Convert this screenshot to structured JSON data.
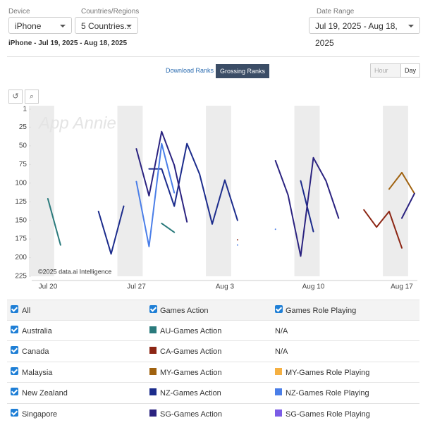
{
  "filters": {
    "device_label": "Device",
    "device": "iPhone",
    "countries_label": "Countries/Regions",
    "countries": "5 Countries...",
    "date_range_label": "Date Range",
    "date_range": "Jul 19, 2025 - Aug 18, 2025"
  },
  "subtitle": "iPhone - Jul 19, 2025 - Aug 18, 2025",
  "tabs": [
    "Download Ranks",
    "Grossing Ranks"
  ],
  "granularity": [
    "Hour",
    "Day"
  ],
  "chart_data": {
    "type": "line",
    "watermark": "App Annie",
    "credit": "©2025 data.ai Intelligence",
    "categories": [
      null,
      "Jul 20",
      null,
      null,
      null,
      null,
      null,
      null,
      "Jul 27",
      null,
      null,
      null,
      null,
      null,
      null,
      "Aug 3",
      null,
      null,
      null,
      null,
      null,
      null,
      "Aug 10",
      null,
      null,
      null,
      null,
      null,
      null,
      "Aug 17",
      null
    ],
    "ylim": [
      1,
      225
    ],
    "y_inverted": true,
    "yticks": [
      1,
      25,
      50,
      75,
      100,
      125,
      150,
      175,
      200,
      225
    ],
    "series": [
      {
        "name": "AU-Games Action",
        "color": "#2a7a7c",
        "values": [
          null,
          121,
          183,
          null,
          null,
          null,
          null,
          null,
          null,
          null,
          154,
          166,
          null,
          null,
          null,
          null,
          null,
          null,
          null,
          null,
          null,
          null,
          null,
          null,
          null,
          null,
          null,
          null,
          null,
          null,
          null
        ]
      },
      {
        "name": "CA-Games Action",
        "color": "#8c2614",
        "values": [
          null,
          null,
          null,
          null,
          null,
          null,
          null,
          null,
          null,
          null,
          null,
          null,
          null,
          null,
          null,
          null,
          176,
          null,
          null,
          null,
          null,
          null,
          null,
          null,
          null,
          null,
          136,
          159,
          138,
          187,
          null
        ]
      },
      {
        "name": "MY-Games Action",
        "color": "#a0620f",
        "values": [
          null,
          null,
          null,
          null,
          null,
          null,
          null,
          null,
          null,
          null,
          null,
          null,
          null,
          null,
          null,
          null,
          null,
          null,
          null,
          null,
          null,
          null,
          null,
          null,
          null,
          null,
          null,
          null,
          108,
          86,
          114
        ]
      },
      {
        "name": "MY-Games Role Playing",
        "color": "#f5b042",
        "values": [
          null,
          null,
          null,
          null,
          null,
          null,
          null,
          null,
          null,
          null,
          null,
          null,
          null,
          null,
          null,
          null,
          null,
          null,
          null,
          null,
          null,
          null,
          null,
          null,
          null,
          null,
          null,
          null,
          null,
          null,
          null
        ]
      },
      {
        "name": "NZ-Games Action",
        "color": "#1c2c8c",
        "values": [
          null,
          null,
          null,
          null,
          null,
          138,
          195,
          131,
          null,
          81,
          81,
          131,
          47,
          88,
          155,
          96,
          150,
          null,
          null,
          null,
          null,
          97,
          165,
          null,
          null,
          null,
          null,
          null,
          null,
          null,
          null
        ]
      },
      {
        "name": "NZ-Games Role Playing",
        "color": "#4a7ee8",
        "values": [
          null,
          null,
          null,
          null,
          null,
          null,
          null,
          null,
          98,
          185,
          47,
          113,
          null,
          null,
          null,
          null,
          183,
          null,
          null,
          162,
          null,
          null,
          null,
          null,
          null,
          null,
          null,
          null,
          null,
          null,
          null
        ]
      },
      {
        "name": "SG-Games Action",
        "color": "#2b2380",
        "values": [
          null,
          null,
          null,
          null,
          null,
          null,
          null,
          null,
          54,
          117,
          31,
          76,
          152,
          null,
          null,
          null,
          null,
          null,
          null,
          70,
          116,
          198,
          66,
          97,
          147,
          null,
          null,
          null,
          null,
          147,
          114
        ]
      },
      {
        "name": "SG-Games Role Playing",
        "color": "#7b5ce6",
        "values": [
          null,
          null,
          null,
          null,
          null,
          null,
          null,
          null,
          null,
          null,
          null,
          null,
          null,
          null,
          null,
          null,
          null,
          null,
          null,
          null,
          null,
          null,
          null,
          null,
          null,
          null,
          null,
          null,
          null,
          null,
          null
        ]
      }
    ]
  },
  "legend_table": {
    "all": "All",
    "headers": [
      "Games Action",
      "Games Role Playing"
    ],
    "rows": [
      {
        "country": "Australia",
        "note": "N/A"
      },
      {
        "country": "Canada",
        "note": "N/A"
      },
      {
        "country": "Malaysia"
      },
      {
        "country": "New Zealand"
      },
      {
        "country": "Singapore"
      }
    ]
  }
}
